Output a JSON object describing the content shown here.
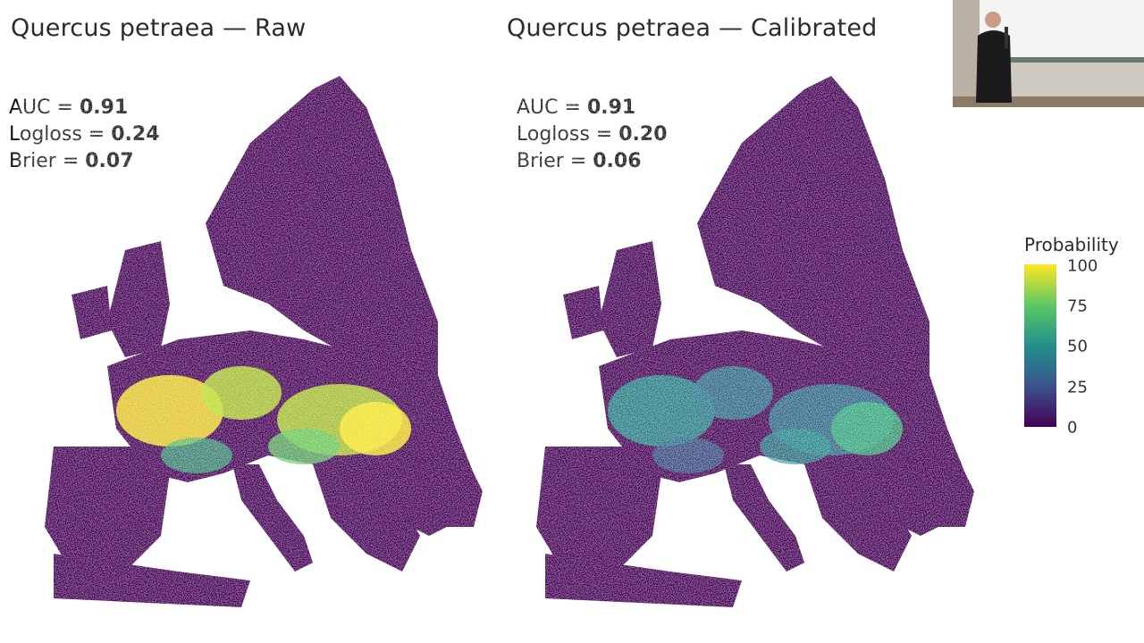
{
  "panels": [
    {
      "title": "Quercus petraea — Raw",
      "auc": "0.91",
      "logloss": "0.24",
      "brier": "0.07"
    },
    {
      "title": "Quercus petraea — Calibrated",
      "auc": "0.91",
      "logloss": "0.20",
      "brier": "0.06"
    }
  ],
  "labels": {
    "auc": "AUC = ",
    "logloss": "Logloss = ",
    "brier": "Brier = "
  },
  "legend": {
    "title": "Probability",
    "ticks": [
      "100",
      "75",
      "50",
      "25",
      "0"
    ]
  },
  "colors": {
    "low": "#440154",
    "mid": "#21908c",
    "high": "#fde725",
    "background": "#ffffff"
  }
}
